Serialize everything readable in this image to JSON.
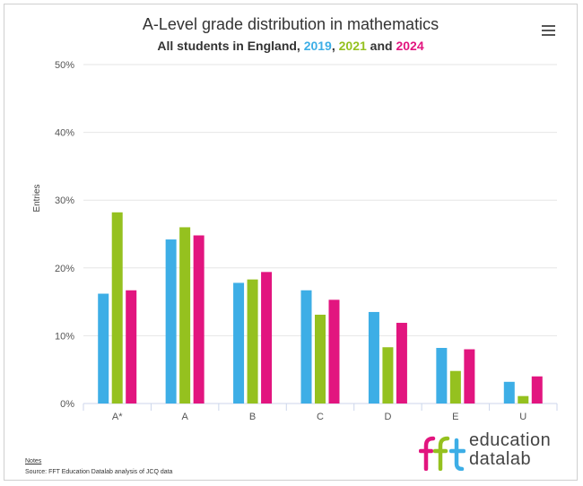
{
  "chart_data": {
    "type": "bar",
    "title": "A-Level grade distribution in mathematics",
    "subtitle": {
      "prefix": "All students in England, ",
      "sep1": ", ",
      "sep2": " and "
    },
    "ylabel": "Entries",
    "xlabel": "",
    "ylim": [
      0,
      50
    ],
    "yticks": [
      "0%",
      "10%",
      "20%",
      "30%",
      "40%",
      "50%"
    ],
    "ytick_values": [
      0,
      10,
      20,
      30,
      40,
      50
    ],
    "grid": true,
    "categories": [
      "A*",
      "A",
      "B",
      "C",
      "D",
      "E",
      "U"
    ],
    "series": [
      {
        "name": "2019",
        "color": "#3daee6",
        "values": [
          16.2,
          24.2,
          17.8,
          16.7,
          13.5,
          8.2,
          3.2
        ]
      },
      {
        "name": "2021",
        "color": "#95c11f",
        "values": [
          28.2,
          26.0,
          18.3,
          13.1,
          8.3,
          4.8,
          1.1
        ]
      },
      {
        "name": "2024",
        "color": "#e2157f",
        "values": [
          16.7,
          24.8,
          19.4,
          15.3,
          11.9,
          8.0,
          4.0
        ]
      }
    ]
  },
  "footer": {
    "notes_label": "Notes",
    "source": "Source: FFT Education Datalab analysis of JCQ data"
  },
  "logo": {
    "mark_text": "fft",
    "line1": "education",
    "line2": "datalab",
    "colors": [
      "#e2157f",
      "#95c11f",
      "#3daee6"
    ]
  },
  "menu": {
    "icon": "hamburger-menu-icon"
  }
}
